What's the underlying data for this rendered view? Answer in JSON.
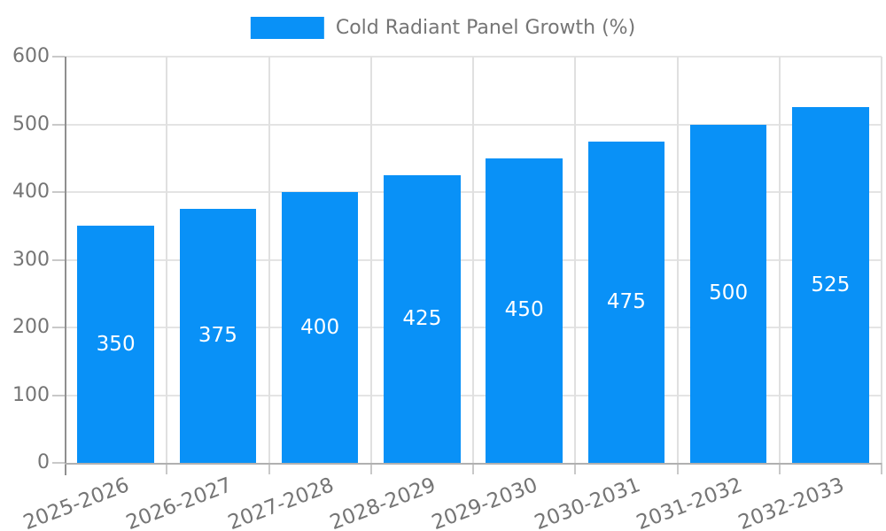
{
  "legend": {
    "label": "Cold Radiant Panel Growth (%)"
  },
  "chart_data": {
    "type": "bar",
    "title": "",
    "series_name": "Cold Radiant Panel Growth (%)",
    "categories": [
      "2025-2026",
      "2026-2027",
      "2027-2028",
      "2028-2029",
      "2029-2030",
      "2030-2031",
      "2031-2032",
      "2032-2033"
    ],
    "values": [
      350,
      375,
      400,
      425,
      450,
      475,
      500,
      525
    ],
    "value_labels": [
      "350",
      "375",
      "400",
      "425",
      "450",
      "475",
      "500",
      "525"
    ],
    "value_label_position": "inside-center",
    "xlabel": "",
    "ylabel": "",
    "ylim": [
      0,
      600
    ],
    "y_ticks": [
      0,
      100,
      200,
      300,
      400,
      500,
      600
    ],
    "grid": true,
    "legend_position": "top-center",
    "x_tick_rotation_deg": -21,
    "bar_width_fraction": 0.75
  },
  "colors": {
    "bar": "#0991f7",
    "value_label": "#ffffff",
    "tick_label": "#757575",
    "legend_text": "#757575",
    "gridline": "#e4e4e4",
    "axis_line": "#8f8f8f",
    "background": "#ffffff"
  }
}
